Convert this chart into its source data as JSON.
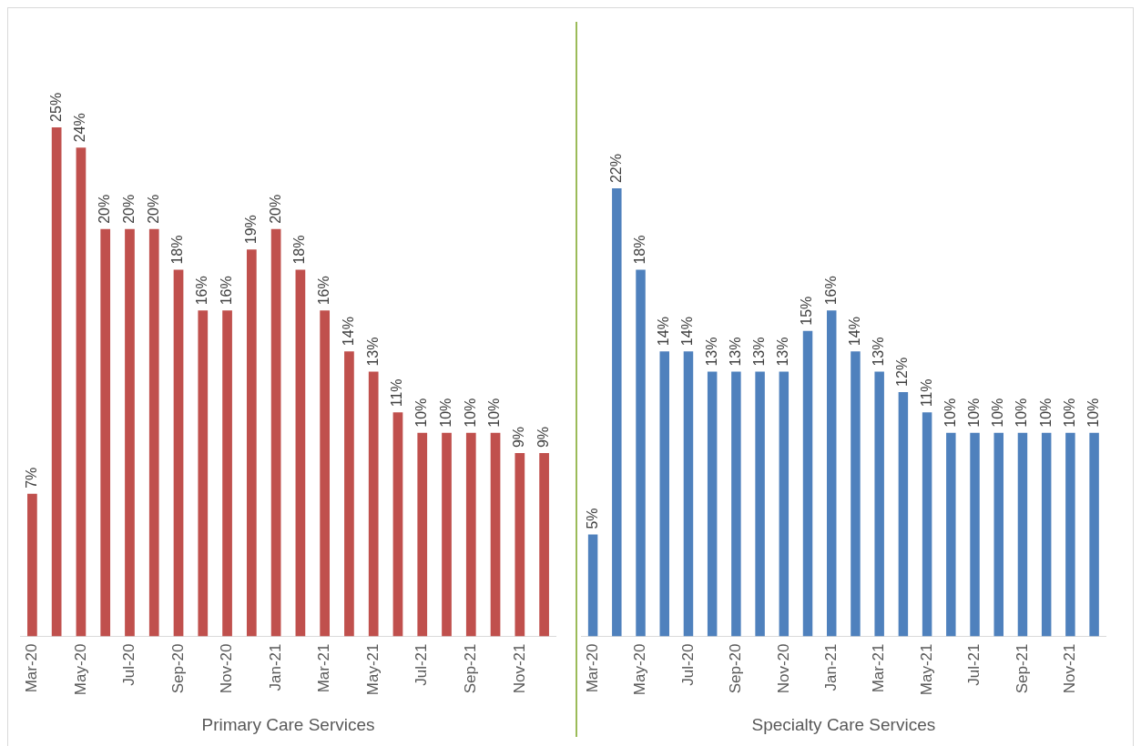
{
  "chart_data": [
    {
      "type": "bar",
      "xlabel": "Primary Care Services",
      "categories": [
        "Mar-20",
        null,
        "May-20",
        null,
        "Jul-20",
        null,
        "Sep-20",
        null,
        "Nov-20",
        null,
        "Jan-21",
        null,
        "Mar-21",
        null,
        "May-21",
        null,
        "Jul-21",
        null,
        "Sep-21",
        null,
        "Nov-21",
        null
      ],
      "values": [
        7,
        25,
        24,
        20,
        20,
        20,
        18,
        16,
        16,
        19,
        20,
        18,
        16,
        14,
        13,
        11,
        10,
        10,
        10,
        10,
        9,
        9
      ],
      "value_labels": [
        "7%",
        "25%",
        "24%",
        "20%",
        "20%",
        "20%",
        "18%",
        "16%",
        "16%",
        "19%",
        "20%",
        "18%",
        "16%",
        "14%",
        "13%",
        "11%",
        "10%",
        "10%",
        "10%",
        "10%",
        "9%",
        "9%"
      ],
      "color": "#c0504d",
      "grid": false,
      "legend": false,
      "tick_labels": "x"
    },
    {
      "type": "bar",
      "xlabel": "Specialty Care Services",
      "categories": [
        "Mar-20",
        null,
        "May-20",
        null,
        "Jul-20",
        null,
        "Sep-20",
        null,
        "Nov-20",
        null,
        "Jan-21",
        null,
        "Mar-21",
        null,
        "May-21",
        null,
        "Jul-21",
        null,
        "Sep-21",
        null,
        "Nov-21",
        null
      ],
      "values": [
        5,
        22,
        18,
        14,
        14,
        13,
        13,
        13,
        13,
        15,
        16,
        14,
        13,
        12,
        11,
        10,
        10,
        10,
        10,
        10,
        10,
        10
      ],
      "value_labels": [
        "5%",
        "22%",
        "18%",
        "14%",
        "14%",
        "13%",
        "13%",
        "13%",
        "13%",
        "15%",
        "16%",
        "14%",
        "13%",
        "12%",
        "11%",
        "10%",
        "10%",
        "10%",
        "10%",
        "10%",
        "10%",
        "10%"
      ],
      "color": "#4f81bd",
      "grid": false,
      "legend": false,
      "tick_labels": "x"
    }
  ]
}
